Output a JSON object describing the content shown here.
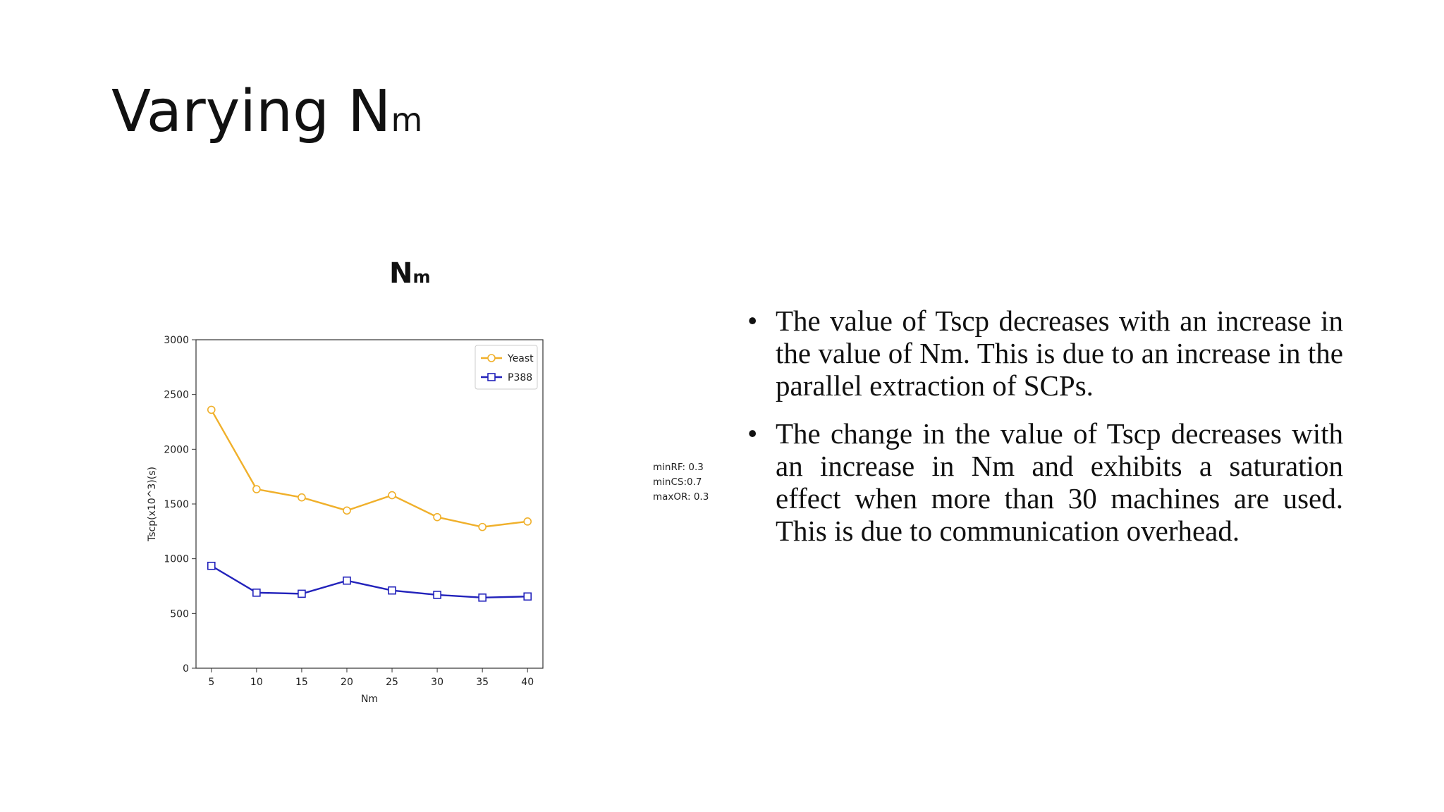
{
  "slide": {
    "title_main": "Varying N",
    "title_sub": "m"
  },
  "chart_heading": {
    "main": "N",
    "sub": "m"
  },
  "params": [
    "minRF: 0.3",
    "minCS:0.7",
    "maxOR: 0.3"
  ],
  "bullets": [
    "The value of Tscp decreases with an increase in the value of Nm. This is due to an increase in the parallel extraction of SCPs.",
    "The change in the value of Tscp decreases with an increase in Nm and exhibits a saturation effect when more than 30 machines are used. This is due to communication overhead."
  ],
  "chart_data": {
    "type": "line",
    "x": [
      5,
      10,
      15,
      20,
      25,
      30,
      35,
      40
    ],
    "xlabel": "Nm",
    "ylabel": "Tscp(x10^3)(s)",
    "xlim": [
      3.3,
      41.7
    ],
    "ylim": [
      0,
      3000
    ],
    "yticks": [
      0,
      500,
      1000,
      1500,
      2000,
      2500,
      3000
    ],
    "grid": false,
    "legend": "top-right",
    "series": [
      {
        "name": "Yeast",
        "color": "#f0b02b",
        "marker": "circle",
        "values": [
          2360,
          1635,
          1560,
          1440,
          1580,
          1380,
          1290,
          1340
        ]
      },
      {
        "name": "P388",
        "color": "#2222bb",
        "marker": "square",
        "values": [
          935,
          690,
          680,
          800,
          710,
          670,
          645,
          655
        ]
      }
    ]
  }
}
